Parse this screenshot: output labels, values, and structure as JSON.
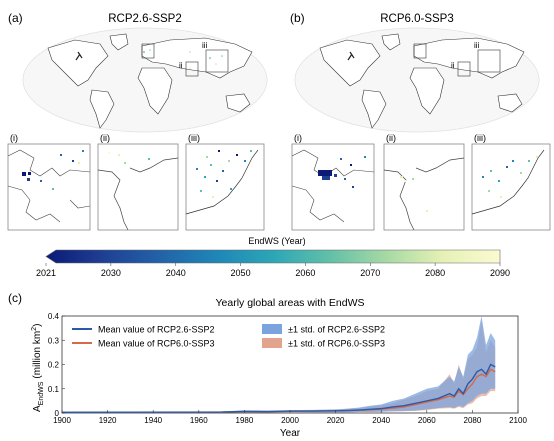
{
  "panel_a": {
    "label": "(a)",
    "title": "RCP2.6-SSP2",
    "insets": [
      {
        "label": "(i)",
        "box_label": "i"
      },
      {
        "label": "(ii)",
        "box_label": "ii"
      },
      {
        "label": "(iii)",
        "box_label": "iii"
      }
    ]
  },
  "panel_b": {
    "label": "(b)",
    "title": "RCP6.0-SSP3",
    "insets": [
      {
        "label": "(i)",
        "box_label": "i"
      },
      {
        "label": "(ii)",
        "box_label": "ii"
      },
      {
        "label": "(iii)",
        "box_label": "iii"
      }
    ]
  },
  "colorbar": {
    "title": "EndWS (Year)",
    "ticks": [
      "2021",
      "2030",
      "2040",
      "2050",
      "2060",
      "2070",
      "2080",
      "2090"
    ],
    "colors": [
      "#0b1a77",
      "#1f3f93",
      "#2262a8",
      "#1f86b7",
      "#2ca6b7",
      "#62c0a8",
      "#a7d9a4",
      "#e6f1b5",
      "#fbfbd2"
    ]
  },
  "chart_data": {
    "type": "area",
    "panel_label": "(c)",
    "title": "Yearly global areas with EndWS",
    "xlabel": "Year",
    "ylabel_main": "A",
    "ylabel_sub": "EndWS",
    "ylabel_unit": "(million km",
    "ylabel_sup": "2",
    "ylabel_close": ")",
    "xlim": [
      1900,
      2100
    ],
    "ylim": [
      0,
      0.4
    ],
    "xticks": [
      "1900",
      "1920",
      "1940",
      "1960",
      "1980",
      "2000",
      "2020",
      "2040",
      "2060",
      "2080",
      "2100"
    ],
    "yticks": [
      "0",
      "0.1",
      "0.2",
      "0.3",
      "0.4"
    ],
    "legend": [
      {
        "label": "Mean value of RCP2.6-SSP2",
        "kind": "line",
        "color": "#2c5aa8"
      },
      {
        "label": "Mean value of RCP6.0-SSP3",
        "kind": "line",
        "color": "#d5694a"
      },
      {
        "label": "±1 std. of RCP2.6-SSP2",
        "kind": "band",
        "color": "#7ba3dd"
      },
      {
        "label": "±1 std. of RCP6.0-SSP3",
        "kind": "band",
        "color": "#e2a48d"
      }
    ],
    "series": [
      {
        "name": "RCP2.6-SSP2",
        "x": [
          1900,
          1970,
          1980,
          1990,
          2000,
          2010,
          2020,
          2025,
          2030,
          2035,
          2040,
          2045,
          2050,
          2055,
          2060,
          2065,
          2070,
          2072,
          2074,
          2076,
          2078,
          2080,
          2082,
          2084,
          2086,
          2088,
          2090
        ],
        "mean": [
          0.003,
          0.004,
          0.007,
          0.006,
          0.008,
          0.008,
          0.009,
          0.01,
          0.012,
          0.015,
          0.018,
          0.025,
          0.03,
          0.04,
          0.05,
          0.06,
          0.08,
          0.07,
          0.1,
          0.08,
          0.12,
          0.14,
          0.17,
          0.18,
          0.16,
          0.2,
          0.19
        ],
        "upper": [
          0.004,
          0.006,
          0.011,
          0.01,
          0.012,
          0.013,
          0.015,
          0.018,
          0.022,
          0.03,
          0.035,
          0.05,
          0.06,
          0.08,
          0.1,
          0.11,
          0.15,
          0.13,
          0.19,
          0.15,
          0.24,
          0.26,
          0.31,
          0.4,
          0.28,
          0.33,
          0.3
        ],
        "lower": [
          0.002,
          0.002,
          0.003,
          0.002,
          0.004,
          0.003,
          0.003,
          0.003,
          0.004,
          0.004,
          0.005,
          0.007,
          0.008,
          0.01,
          0.015,
          0.02,
          0.025,
          0.02,
          0.03,
          0.025,
          0.04,
          0.05,
          0.07,
          0.08,
          0.08,
          0.1,
          0.1
        ]
      },
      {
        "name": "RCP6.0-SSP3",
        "x": [
          1900,
          1970,
          1980,
          1990,
          2000,
          2010,
          2020,
          2025,
          2030,
          2035,
          2040,
          2045,
          2050,
          2055,
          2060,
          2065,
          2070,
          2072,
          2074,
          2076,
          2078,
          2080,
          2082,
          2084,
          2086,
          2088,
          2090
        ],
        "mean": [
          0.003,
          0.004,
          0.006,
          0.006,
          0.007,
          0.008,
          0.009,
          0.01,
          0.011,
          0.013,
          0.016,
          0.02,
          0.025,
          0.035,
          0.045,
          0.055,
          0.07,
          0.065,
          0.09,
          0.075,
          0.1,
          0.12,
          0.15,
          0.16,
          0.15,
          0.18,
          0.17
        ],
        "upper": [
          0.004,
          0.005,
          0.01,
          0.009,
          0.011,
          0.012,
          0.014,
          0.017,
          0.02,
          0.026,
          0.032,
          0.04,
          0.055,
          0.07,
          0.09,
          0.1,
          0.16,
          0.12,
          0.2,
          0.14,
          0.22,
          0.24,
          0.27,
          0.38,
          0.25,
          0.3,
          0.27
        ],
        "lower": [
          0.002,
          0.002,
          0.003,
          0.002,
          0.003,
          0.003,
          0.003,
          0.003,
          0.004,
          0.004,
          0.005,
          0.006,
          0.007,
          0.009,
          0.012,
          0.018,
          0.02,
          0.018,
          0.025,
          0.02,
          0.035,
          0.04,
          0.06,
          0.07,
          0.07,
          0.09,
          0.09
        ]
      }
    ]
  }
}
